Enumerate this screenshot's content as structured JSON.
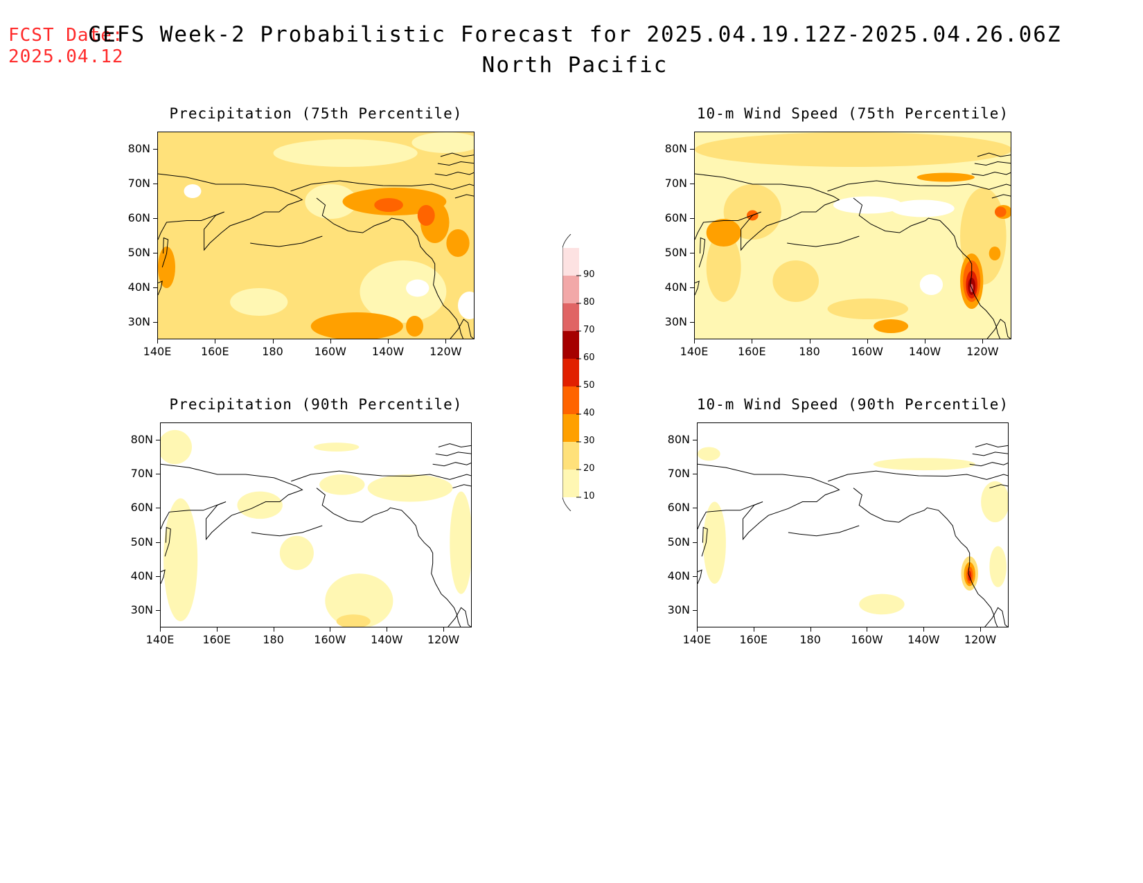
{
  "header": {
    "fcst_label": "FCST Date:",
    "fcst_date": "2025.04.12",
    "title": "GEFS Week-2 Probabilistic Forecast for 2025.04.19.12Z-2025.04.26.06Z",
    "region": "North Pacific"
  },
  "axes": {
    "lat_labels": [
      "80N",
      "70N",
      "60N",
      "50N",
      "40N",
      "30N"
    ],
    "lon_labels": [
      "140E",
      "160E",
      "180",
      "160W",
      "140W",
      "120W"
    ],
    "lat_range": [
      25,
      85
    ],
    "lon_range": [
      140,
      250
    ]
  },
  "panels": [
    {
      "id": "precip75",
      "title": "Precipitation (75th Percentile)"
    },
    {
      "id": "wind75",
      "title": "10-m Wind Speed (75th Percentile)"
    },
    {
      "id": "precip90",
      "title": "Precipitation (90th Percentile)"
    },
    {
      "id": "wind90",
      "title": "10-m Wind Speed (90th Percentile)"
    }
  ],
  "colorbar": {
    "levels": [
      "10",
      "20",
      "30",
      "40",
      "50",
      "60",
      "70",
      "80",
      "90"
    ],
    "colors": [
      "#ffffff",
      "#fff7b3",
      "#ffe17a",
      "#ffa000",
      "#ff6400",
      "#e12000",
      "#a50000",
      "#e06464",
      "#f2a8a8",
      "#fde2e2"
    ]
  }
}
